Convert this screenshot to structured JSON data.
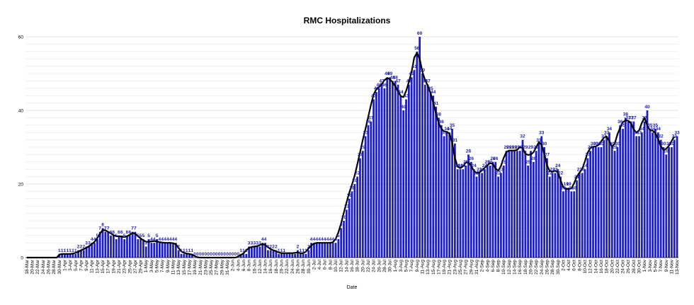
{
  "chart_data": {
    "type": "bar",
    "title": "RMC Hospitalizations",
    "xlabel": "Date",
    "ylabel": "",
    "ylim": [
      0,
      60
    ],
    "yticks": [
      0,
      20,
      40,
      60
    ],
    "grid": true,
    "bar_color": "#1c1ccc",
    "line_color": "#000000",
    "label_color": "#1a1aa6",
    "start_label": "18-Mar",
    "categories": [
      "18-Mar",
      "19-Mar",
      "20-Mar",
      "21-Mar",
      "22-Mar",
      "23-Mar",
      "24-Mar",
      "25-Mar",
      "26-Mar",
      "27-Mar",
      "28-Mar",
      "29-Mar",
      "30-Mar",
      "31-Mar",
      "1-Apr",
      "2-Apr",
      "3-Apr",
      "4-Apr",
      "5-Apr",
      "6-Apr",
      "7-Apr",
      "8-Apr",
      "9-Apr",
      "10-Apr",
      "11-Apr",
      "12-Apr",
      "13-Apr",
      "14-Apr",
      "15-Apr",
      "16-Apr",
      "17-Apr",
      "18-Apr",
      "19-Apr",
      "20-Apr",
      "21-Apr",
      "22-Apr",
      "23-Apr",
      "24-Apr",
      "25-Apr",
      "26-Apr",
      "27-Apr",
      "28-Apr",
      "29-Apr",
      "30-Apr",
      "1-May",
      "2-May",
      "3-May",
      "4-May",
      "5-May",
      "6-May",
      "7-May",
      "8-May",
      "9-May",
      "10-May",
      "11-May",
      "12-May",
      "13-May",
      "14-May",
      "15-May",
      "16-May",
      "17-May",
      "18-May",
      "19-May",
      "20-May",
      "21-May",
      "22-May",
      "23-May",
      "24-May",
      "25-May",
      "26-May",
      "27-May",
      "28-May",
      "29-May",
      "30-May",
      "31-May",
      "1-Jun",
      "2-Jun",
      "3-Jun",
      "4-Jun",
      "5-Jun",
      "6-Jun",
      "7-Jun",
      "8-Jun",
      "9-Jun",
      "10-Jun",
      "11-Jun",
      "12-Jun",
      "13-Jun",
      "14-Jun",
      "15-Jun",
      "16-Jun",
      "17-Jun",
      "18-Jun",
      "19-Jun",
      "20-Jun",
      "21-Jun",
      "22-Jun",
      "23-Jun",
      "24-Jun",
      "25-Jun",
      "26-Jun",
      "27-Jun",
      "28-Jun",
      "29-Jun",
      "30-Jun",
      "1-Jul",
      "2-Jul",
      "3-Jul",
      "4-Jul",
      "5-Jul",
      "6-Jul",
      "7-Jul",
      "8-Jul",
      "9-Jul",
      "10-Jul",
      "11-Jul",
      "12-Jul",
      "13-Jul",
      "14-Jul",
      "15-Jul",
      "16-Jul",
      "17-Jul",
      "18-Jul",
      "19-Jul",
      "20-Jul",
      "21-Jul",
      "22-Jul",
      "23-Jul",
      "24-Jul",
      "25-Jul",
      "26-Jul",
      "27-Jul",
      "28-Jul",
      "29-Jul",
      "30-Jul",
      "31-Jul",
      "1-Aug",
      "2-Aug",
      "3-Aug",
      "4-Aug",
      "5-Aug",
      "6-Aug",
      "7-Aug",
      "8-Aug",
      "9-Aug",
      "10-Aug",
      "11-Aug",
      "12-Aug",
      "13-Aug",
      "14-Aug",
      "15-Aug",
      "16-Aug",
      "17-Aug",
      "18-Aug",
      "19-Aug",
      "20-Aug",
      "21-Aug",
      "22-Aug",
      "23-Aug",
      "24-Aug",
      "25-Aug",
      "26-Aug",
      "27-Aug",
      "28-Aug",
      "29-Aug",
      "30-Aug",
      "31-Aug",
      "1-Sep",
      "2-Sep",
      "3-Sep",
      "4-Sep",
      "5-Sep",
      "6-Sep",
      "7-Sep",
      "8-Sep",
      "9-Sep",
      "10-Sep",
      "11-Sep",
      "12-Sep",
      "13-Sep",
      "14-Sep",
      "15-Sep",
      "16-Sep",
      "17-Sep",
      "18-Sep",
      "19-Sep",
      "20-Sep",
      "21-Sep",
      "22-Sep",
      "23-Sep",
      "24-Sep",
      "25-Sep",
      "26-Sep",
      "27-Sep",
      "28-Sep",
      "29-Sep",
      "30-Sep",
      "1-Oct",
      "2-Oct",
      "3-Oct",
      "4-Oct",
      "5-Oct",
      "6-Oct",
      "7-Oct",
      "8-Oct",
      "9-Oct",
      "10-Oct",
      "11-Oct",
      "12-Oct",
      "13-Oct",
      "14-Oct",
      "15-Oct",
      "16-Oct",
      "17-Oct",
      "18-Oct",
      "19-Oct",
      "20-Oct",
      "21-Oct",
      "22-Oct",
      "23-Oct",
      "24-Oct",
      "25-Oct",
      "26-Oct",
      "27-Oct",
      "28-Oct",
      "29-Oct",
      "30-Oct",
      "31-Oct",
      "1-Nov",
      "2-Nov",
      "3-Nov",
      "4-Nov",
      "5-Nov",
      "6-Nov",
      "7-Nov",
      "8-Nov",
      "9-Nov",
      "10-Nov",
      "11-Nov",
      "12-Nov",
      "13-Nov"
    ],
    "values": [
      0,
      0,
      0,
      0,
      0,
      0,
      0,
      0,
      0,
      0,
      0,
      0,
      1,
      1,
      1,
      1,
      1,
      1,
      1,
      2,
      2,
      2,
      3,
      3,
      4,
      4,
      5,
      7,
      8,
      7,
      7,
      6,
      6,
      5,
      6,
      6,
      5,
      6,
      6,
      7,
      7,
      5,
      5,
      5,
      3,
      5,
      4,
      4,
      5,
      4,
      4,
      4,
      4,
      4,
      4,
      4,
      2,
      1,
      1,
      1,
      1,
      1,
      0,
      0,
      0,
      0,
      0,
      0,
      0,
      0,
      0,
      0,
      0,
      0,
      0,
      0,
      0,
      0,
      0,
      1,
      1,
      1,
      3,
      3,
      3,
      3,
      3,
      4,
      4,
      2,
      2,
      2,
      2,
      1,
      1,
      1,
      1,
      1,
      1,
      1,
      2,
      1,
      1,
      1,
      2,
      4,
      4,
      4,
      4,
      4,
      4,
      4,
      4,
      4,
      4,
      5,
      8,
      10,
      13,
      16,
      18,
      20,
      22,
      27,
      29,
      33,
      36,
      37,
      43,
      45,
      46,
      47,
      46,
      49,
      49,
      48,
      48,
      47,
      44,
      40,
      43,
      47,
      49,
      51,
      56,
      60,
      50,
      47,
      47,
      45,
      44,
      41,
      38,
      36,
      33,
      34,
      34,
      35,
      31,
      24,
      24,
      24,
      25,
      28,
      26,
      24,
      22,
      23,
      23,
      24,
      25,
      25,
      26,
      26,
      22,
      23,
      25,
      29,
      29,
      29,
      29,
      29,
      29,
      32,
      29,
      25,
      29,
      26,
      29,
      31,
      33,
      30,
      27,
      22,
      23,
      23,
      24,
      22,
      18,
      19,
      19,
      18,
      18,
      21,
      23,
      23,
      24,
      27,
      29,
      30,
      30,
      30,
      30,
      32,
      33,
      34,
      30,
      29,
      30,
      36,
      35,
      38,
      37,
      37,
      37,
      33,
      33,
      34,
      37,
      40,
      35,
      34,
      35,
      34,
      32,
      30,
      28,
      30,
      30,
      32,
      33
    ],
    "labels": [
      "",
      "",
      "",
      "",
      "",
      "",
      "",
      "",
      "",
      "",
      "",
      "",
      "1",
      "1",
      "1",
      "1",
      "1",
      "1",
      "1",
      "2",
      "2",
      "2",
      "3",
      "3",
      "4",
      "4",
      "5",
      "7",
      "8",
      "7",
      "7",
      "6",
      "6",
      "5",
      "6",
      "6",
      "5",
      "6",
      "6",
      "7",
      "7",
      "5",
      "5",
      "5",
      "3",
      "5",
      "4",
      "4",
      "5",
      "4",
      "4",
      "4",
      "4",
      "4",
      "4",
      "4",
      "2",
      "1",
      "1",
      "1",
      "1",
      "1",
      "0",
      "0",
      "0",
      "0",
      "0",
      "0",
      "0",
      "0",
      "0",
      "0",
      "0",
      "0",
      "0",
      "0",
      "0",
      "0",
      "0",
      "1",
      "1",
      "1",
      "3",
      "3",
      "3",
      "3",
      "3",
      "4",
      "4",
      "2",
      "2",
      "2",
      "2",
      "1",
      "1",
      "1",
      "",
      "",
      "",
      "",
      "2",
      "1",
      "1",
      "1",
      "2",
      "4",
      "4",
      "4",
      "4",
      "4",
      "4",
      "4",
      "4",
      "4",
      "4",
      "5",
      "8",
      "10",
      "13",
      "16",
      "18",
      "20",
      "22",
      "27",
      "29",
      "33",
      "36",
      "37",
      "43",
      "45",
      "46",
      "47",
      "46",
      "49",
      "49",
      "48",
      "48",
      "47",
      "44",
      "40",
      "43",
      "47",
      "49",
      "51",
      "56",
      "60",
      "50",
      "47",
      "47",
      "45",
      "44",
      "41",
      "38",
      "36",
      "33",
      "34",
      "34",
      "35",
      "31",
      "24",
      "24",
      "24",
      "25",
      "28",
      "26",
      "24",
      "22",
      "23",
      "23",
      "24",
      "25",
      "25",
      "26",
      "26",
      "22",
      "23",
      "25",
      "29",
      "29",
      "29",
      "29",
      "29",
      "29",
      "32",
      "29",
      "25",
      "29",
      "26",
      "29",
      "31",
      "33",
      "30",
      "27",
      "22",
      "23",
      "23",
      "24",
      "22",
      "18",
      "19",
      "19",
      "18",
      "18",
      "21",
      "23",
      "23",
      "24",
      "27",
      "29",
      "30",
      "30",
      "30",
      "30",
      "32",
      "33",
      "34",
      "30",
      "29",
      "30",
      "36",
      "35",
      "38",
      "37",
      "37",
      "37",
      "33",
      "33",
      "34",
      "37",
      "40",
      "35",
      "34",
      "35",
      "34",
      "32",
      "30",
      "28",
      "30",
      "30",
      "32",
      "33"
    ],
    "trend": [
      0,
      0,
      0,
      0,
      0,
      0,
      0,
      0,
      0,
      0,
      0,
      0,
      0.8,
      1,
      1,
      1,
      1,
      1.1,
      1.3,
      1.6,
      2,
      2.3,
      2.7,
      3.1,
      3.7,
      4.3,
      5.3,
      6.5,
      7.5,
      7.4,
      7,
      6.6,
      6.1,
      5.8,
      5.8,
      5.7,
      5.6,
      5.8,
      6.2,
      6.7,
      6.5,
      5.8,
      5.2,
      4.7,
      4.3,
      4.3,
      4.4,
      4.5,
      4.4,
      4.2,
      4.1,
      4,
      4,
      4,
      3.9,
      3.6,
      2.6,
      1.7,
      1.3,
      1.1,
      1,
      0.8,
      0.4,
      0.1,
      0,
      0,
      0,
      0,
      0,
      0,
      0,
      0,
      0,
      0,
      0,
      0,
      0,
      0,
      0.3,
      0.7,
      1.2,
      2,
      2.6,
      2.9,
      3,
      3.1,
      3.4,
      3.7,
      3.4,
      2.8,
      2.3,
      2,
      1.7,
      1.4,
      1.2,
      1.2,
      1.2,
      1.2,
      1.2,
      1.3,
      1.4,
      1.2,
      1.2,
      1.6,
      2.5,
      3.3,
      3.8,
      4,
      4,
      4,
      4,
      4,
      4,
      4.2,
      5.1,
      6.9,
      9.3,
      12.2,
      15,
      17.6,
      19.8,
      22.3,
      25.4,
      28.6,
      32,
      35,
      38.2,
      41.5,
      44.3,
      45.8,
      46.3,
      47.2,
      48.2,
      48.8,
      48.5,
      47.6,
      46.6,
      45.2,
      43.9,
      43.6,
      45.3,
      47.7,
      50.5,
      54.4,
      55.6,
      54,
      50.5,
      48.2,
      46.7,
      44.7,
      42.1,
      39.2,
      36.6,
      35,
      34.3,
      34.2,
      33.7,
      31.2,
      27.1,
      24.7,
      24.3,
      24.8,
      25.8,
      25.9,
      24.9,
      23.6,
      23,
      23.1,
      23.7,
      24.4,
      25.1,
      25.7,
      25.5,
      24.2,
      23.6,
      24.9,
      27.1,
      28.7,
      29.1,
      29.1,
      29.1,
      29.3,
      30,
      29.8,
      28.2,
      27.9,
      28,
      28.6,
      30,
      31.4,
      30.6,
      28.1,
      25.1,
      23.5,
      23.3,
      23.6,
      23.2,
      21,
      19.1,
      18.7,
      18.6,
      18.8,
      20.2,
      22,
      23.1,
      24.1,
      26.2,
      28.5,
      29.8,
      30.1,
      30.2,
      30.6,
      31.6,
      32.6,
      32.9,
      31.6,
      30.1,
      31,
      33.5,
      35.3,
      36.8,
      37.3,
      37.2,
      36.5,
      34.8,
      34,
      34.6,
      36.6,
      38,
      35.9,
      34.6,
      34.5,
      33.8,
      32.2,
      30.3,
      29.2,
      29.6,
      30.4,
      31.7,
      32.9
    ]
  }
}
